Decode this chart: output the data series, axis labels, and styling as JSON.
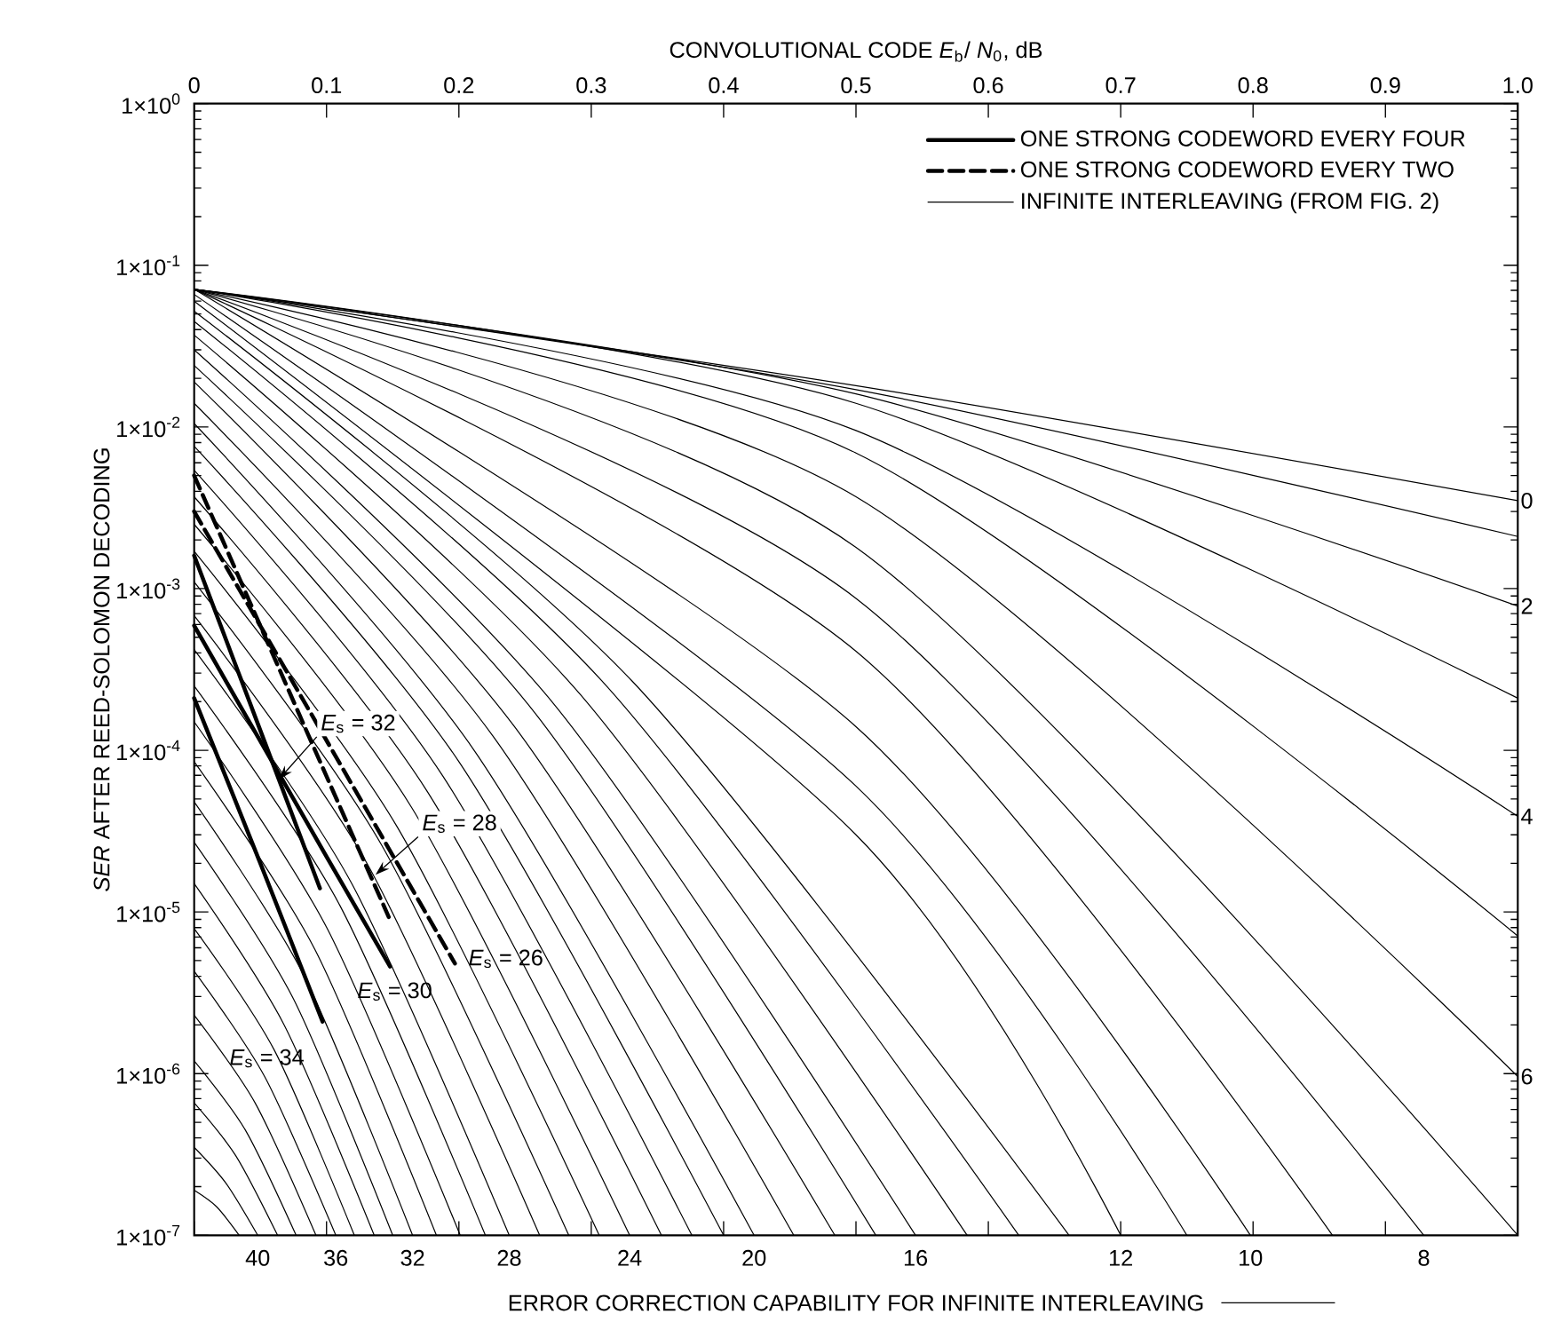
{
  "chart_data": {
    "type": "line",
    "xlabel": "CONVOLUTIONAL CODE *E*$_{b}$/ *N*$_{0}$, dB",
    "ylabel": "*SER* AFTER REED-SOLOMON DECODING",
    "log": "y",
    "xlim": [
      0,
      1
    ],
    "ylim": [
      1e-07,
      1
    ],
    "xticks": [
      0,
      0.1,
      0.2,
      0.3,
      0.4,
      0.5,
      0.6,
      0.7,
      0.8,
      0.9,
      {
        "value": 1,
        "label": "1.0"
      }
    ],
    "yticks": [
      {
        "value": 1,
        "label": "1×10$^{0}$"
      },
      {
        "value": 0.1,
        "label": "1×10$^{-1}$"
      },
      {
        "value": 0.01,
        "label": "1×10$^{-2}$"
      },
      {
        "value": 0.001,
        "label": "1×10$^{-3}$"
      },
      {
        "value": 0.0001,
        "label": "1×10$^{-4}$"
      },
      {
        "value": 1e-05,
        "label": "1×10$^{-5}$"
      },
      {
        "value": 1e-06,
        "label": "1×10$^{-6}$"
      },
      {
        "value": 1e-07,
        "label": "1×10$^{-7}$"
      }
    ],
    "legend": "top right",
    "annotations": [
      "ERROR CORRECTION CAPABILITY FOR INFINITE INTERLEAVING",
      {
        "text": "*E*$_{s}$ = 32",
        "x": 0.064,
        "y": 6.6e-05
      },
      {
        "text": "*E*$_{s}$ = 28",
        "x": 0.137,
        "y": 1.7e-05
      },
      {
        "text": "*E*$_{s}$ = 26",
        "x": 0.197,
        "y": 4.8e-06
      },
      {
        "text": "*E*$_{s}$ = 30",
        "x": 0.148,
        "y": 4.6e-06
      },
      {
        "text": "*E*$_{s}$ = 34",
        "x": 0.097,
        "y": 2.1e-06
      },
      {
        "text": "40",
        "x": 0.048,
        "y": 1e-07
      },
      {
        "text": "36",
        "x": 0.107,
        "y": 1e-07
      },
      {
        "text": "32",
        "x": 0.165,
        "y": 1e-07
      },
      {
        "text": "28",
        "x": 0.238,
        "y": 1e-07
      },
      {
        "text": "24",
        "x": 0.329,
        "y": 1e-07
      },
      {
        "text": "20",
        "x": 0.423,
        "y": 1e-07
      },
      {
        "text": "16",
        "x": 0.545,
        "y": 1e-07
      },
      {
        "text": "12",
        "x": 0.7,
        "y": 1e-07
      },
      {
        "text": "10",
        "x": 0.798,
        "y": 1e-07
      },
      {
        "text": "8",
        "x": 0.929,
        "y": 1e-07
      },
      {
        "text": "0",
        "x": 1,
        "y": 0.0035
      },
      {
        "text": "2",
        "x": 1,
        "y": 0.00078
      },
      {
        "text": "4",
        "x": 1,
        "y": 3.9e-05
      },
      {
        "text": "6",
        "x": 1,
        "y": 9.6e-07
      }
    ],
    "series": [
      {
        "name": "ONE STRONG CODEWORD EVERY FOUR",
        "color": "#000000",
        "line_style": "solid",
        "x": [
          0,
          0.064,
          0.095
        ],
        "values": [
          0.0016,
          6.6e-05,
          1.4e-05
        ]
      },
      {
        "color": "#000000",
        "line_style": "solid",
        "x": [
          0,
          0.1,
          0.148
        ],
        "values": [
          0.00059,
          2.2e-05,
          4.6e-06
        ]
      },
      {
        "color": "#000000",
        "line_style": "solid",
        "x": [
          0,
          0.05,
          0.097
        ],
        "values": [
          0.00021,
          2e-05,
          2.1e-06
        ]
      },
      {
        "name": "ONE STRONG CODEWORD EVERY TWO",
        "color": "#000000",
        "line_style": "dashed",
        "x": [
          0,
          0.1,
          0.197
        ],
        "values": [
          0.003,
          0.000115,
          4.8e-06
        ]
      },
      {
        "color": "#000000",
        "line_style": "dashed",
        "x": [
          0,
          0.1,
          0.147
        ],
        "values": [
          0.005,
          6.9e-05,
          9.3e-06
        ]
      },
      {
        "name": "INFINITE INTERLEAVING (FROM FIG. 2)",
        "color": "#000000",
        "line_style": "solid",
        "x": [
          0,
          0.5,
          1
        ],
        "values": [
          0.071,
          0.018,
          0.0035
        ]
      },
      {
        "color": "#000000",
        "line_style": "solid",
        "x": [
          0,
          0.5,
          1
        ],
        "values": [
          0.071,
          0.017,
          0.0021
        ]
      },
      {
        "color": "#000000",
        "line_style": "solid",
        "x": [
          0,
          0.5,
          1
        ],
        "values": [
          0.071,
          0.016,
          0.00078
        ]
      },
      {
        "color": "#000000",
        "line_style": "solid",
        "x": [
          0,
          0.5,
          1
        ],
        "values": [
          0.071,
          0.014,
          0.00021
        ]
      },
      {
        "color": "#000000",
        "line_style": "solid",
        "x": [
          0,
          0.5,
          1
        ],
        "values": [
          0.071,
          0.0095,
          3.9e-05
        ]
      },
      {
        "color": "#000000",
        "line_style": "solid",
        "x": [
          0,
          0.5,
          1
        ],
        "values": [
          0.071,
          0.0069,
          7.1e-06
        ]
      },
      {
        "color": "#000000",
        "line_style": "solid",
        "x": [
          0,
          0.5,
          1
        ],
        "values": [
          0.071,
          0.0037,
          9.6e-07
        ]
      },
      {
        "color": "#000000",
        "line_style": "solid",
        "x": [
          0,
          0.5,
          1
        ],
        "values": [
          0.071,
          0.0018,
          1e-07
        ]
      },
      {
        "color": "#000000",
        "line_style": "solid",
        "x": [
          0,
          0.5,
          0.929
        ],
        "values": [
          0.071,
          0.00087,
          1e-07
        ]
      },
      {
        "color": "#000000",
        "line_style": "solid",
        "x": [
          0,
          0.5,
          0.86
        ],
        "values": [
          0.071,
          0.00041,
          1e-07
        ]
      },
      {
        "color": "#000000",
        "line_style": "solid",
        "x": [
          0,
          0.5,
          0.798
        ],
        "values": [
          0.071,
          0.00014,
          1e-07
        ]
      },
      {
        "color": "#000000",
        "line_style": "solid",
        "x": [
          0,
          0.5,
          0.75
        ],
        "values": [
          0.066,
          6e-05,
          1e-07
        ]
      },
      {
        "color": "#000000",
        "line_style": "solid",
        "x": [
          0,
          0.5,
          0.7
        ],
        "values": [
          0.06,
          3e-05,
          1e-07
        ]
      },
      {
        "color": "#000000",
        "line_style": "solid",
        "x": [
          0,
          0.3305,
          0.661
        ],
        "values": [
          0.052,
          0.00027,
          1e-07
        ]
      },
      {
        "color": "#000000",
        "line_style": "solid",
        "x": [
          0,
          0.3115,
          0.623
        ],
        "values": [
          0.045,
          0.00025,
          1e-07
        ]
      },
      {
        "color": "#000000",
        "line_style": "solid",
        "x": [
          0,
          0.292,
          0.584
        ],
        "values": [
          0.037,
          0.00022,
          1e-07
        ]
      },
      {
        "color": "#000000",
        "line_style": "solid",
        "x": [
          0,
          0.2725,
          0.545
        ],
        "values": [
          0.03,
          0.00019,
          1e-07
        ]
      },
      {
        "color": "#000000",
        "line_style": "solid",
        "x": [
          0,
          0.2575,
          0.515
        ],
        "values": [
          0.024,
          0.00017,
          1e-07
        ]
      },
      {
        "color": "#000000",
        "line_style": "solid",
        "x": [
          0,
          0.242,
          0.484
        ],
        "values": [
          0.019,
          0.00014,
          1e-07
        ]
      },
      {
        "color": "#000000",
        "line_style": "solid",
        "x": [
          0,
          0.2265,
          0.453
        ],
        "values": [
          0.014,
          0.00012,
          1e-07
        ]
      },
      {
        "color": "#000000",
        "line_style": "solid",
        "x": [
          0,
          0.2115,
          0.423
        ],
        "values": [
          0.0105,
          0.0001,
          1e-07
        ]
      },
      {
        "color": "#000000",
        "line_style": "solid",
        "x": [
          0,
          0.2,
          0.4
        ],
        "values": [
          0.0076,
          8.5e-05,
          1e-07
        ]
      },
      {
        "color": "#000000",
        "line_style": "solid",
        "x": [
          0,
          0.188,
          0.376
        ],
        "values": [
          0.0054,
          6.9e-05,
          1e-07
        ]
      },
      {
        "color": "#000000",
        "line_style": "solid",
        "x": [
          0,
          0.1765,
          0.353
        ],
        "values": [
          0.0037,
          5.5e-05,
          1e-07
        ]
      },
      {
        "color": "#000000",
        "line_style": "solid",
        "x": [
          0,
          0.1645,
          0.329
        ],
        "values": [
          0.0025,
          4.4e-05,
          1e-07
        ]
      },
      {
        "color": "#000000",
        "line_style": "solid",
        "x": [
          0,
          0.153,
          0.306
        ],
        "values": [
          0.0017,
          3.4e-05,
          1e-07
        ]
      },
      {
        "color": "#000000",
        "line_style": "solid",
        "x": [
          0,
          0.1415,
          0.283
        ],
        "values": [
          0.0011,
          2.6e-05,
          1e-07
        ]
      },
      {
        "color": "#000000",
        "line_style": "solid",
        "x": [
          0,
          0.1305,
          0.261
        ],
        "values": [
          0.00068,
          2e-05,
          1e-07
        ]
      },
      {
        "color": "#000000",
        "line_style": "solid",
        "x": [
          0,
          0.119,
          0.238
        ],
        "values": [
          0.00042,
          1.5e-05,
          1e-07
        ]
      },
      {
        "color": "#000000",
        "line_style": "solid",
        "x": [
          0,
          0.11,
          0.22
        ],
        "values": [
          0.00025,
          1.1e-05,
          1e-07
        ]
      },
      {
        "color": "#000000",
        "line_style": "solid",
        "x": [
          0,
          0.1005,
          0.201
        ],
        "values": [
          0.00015,
          7.9e-06,
          1e-07
        ]
      },
      {
        "color": "#000000",
        "line_style": "solid",
        "x": [
          0,
          0.0915,
          0.183
        ],
        "values": [
          8.5e-05,
          5.8e-06,
          1e-07
        ]
      },
      {
        "color": "#000000",
        "line_style": "solid",
        "x": [
          0,
          0.0825,
          0.165
        ],
        "values": [
          4.8e-05,
          4.1e-06,
          1e-07
        ]
      },
      {
        "color": "#000000",
        "line_style": "solid",
        "x": [
          0,
          0.075,
          0.15
        ],
        "values": [
          2.7e-05,
          2.9e-06,
          1e-07
        ]
      },
      {
        "color": "#000000",
        "line_style": "solid",
        "x": [
          0,
          0.068,
          0.136
        ],
        "values": [
          1.5e-05,
          2e-06,
          1e-07
        ]
      },
      {
        "color": "#000000",
        "line_style": "solid",
        "x": [
          0,
          0.0605,
          0.121
        ],
        "values": [
          7.9e-06,
          1.4e-06,
          1e-07
        ]
      },
      {
        "color": "#000000",
        "line_style": "solid",
        "x": [
          0,
          0.0535,
          0.107
        ],
        "values": [
          4.3e-06,
          9.5e-07,
          1e-07
        ]
      },
      {
        "color": "#000000",
        "line_style": "solid",
        "x": [
          0,
          0.046,
          0.092
        ],
        "values": [
          2.3e-06,
          6.6e-07,
          1e-07
        ]
      },
      {
        "color": "#000000",
        "line_style": "solid",
        "x": [
          0,
          0.0385,
          0.077
        ],
        "values": [
          1.2e-06,
          4.5e-07,
          1e-07
        ]
      },
      {
        "color": "#000000",
        "line_style": "solid",
        "x": [
          0,
          0.0315,
          0.063
        ],
        "values": [
          6.6e-07,
          3.1e-07,
          1e-07
        ]
      },
      {
        "color": "#000000",
        "line_style": "solid",
        "x": [
          0,
          0.024,
          0.048
        ],
        "values": [
          3.5e-07,
          2.1e-07,
          1e-07
        ]
      },
      {
        "color": "#000000",
        "line_style": "solid",
        "x": [
          0,
          0.017,
          0.034
        ],
        "values": [
          1.9e-07,
          1.5e-07,
          1e-07
        ]
      }
    ]
  }
}
